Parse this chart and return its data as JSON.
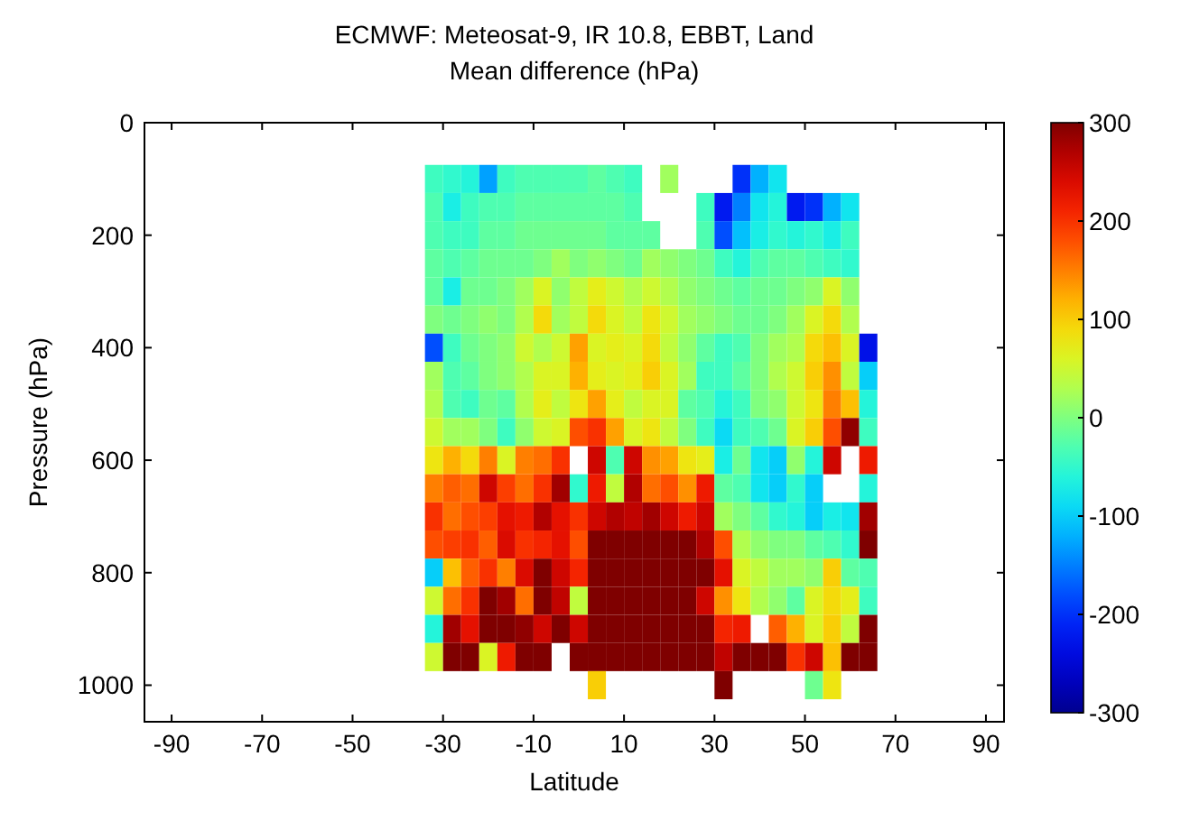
{
  "chart_data": {
    "type": "heatmap",
    "title": "ECMWF: Meteosat-9, IR 10.8, EBBT, Land",
    "subtitle": "Mean difference (hPa)",
    "xlabel": "Latitude",
    "ylabel": "Pressure (hPa)",
    "x": [
      -32,
      -28,
      -24,
      -20,
      -16,
      -12,
      -8,
      -4,
      0,
      4,
      8,
      12,
      16,
      20,
      24,
      28,
      32,
      36,
      40,
      44,
      48,
      52,
      56,
      60,
      64
    ],
    "y": [
      100,
      150,
      200,
      250,
      300,
      350,
      400,
      450,
      500,
      550,
      600,
      650,
      700,
      750,
      800,
      850,
      900,
      950,
      1000
    ],
    "xlim": [
      -96,
      94
    ],
    "xticks": [
      -90,
      -70,
      -50,
      -30,
      -10,
      10,
      30,
      50,
      70,
      90
    ],
    "ylim": [
      1065,
      0
    ],
    "yticks": [
      0,
      200,
      400,
      600,
      800,
      1000
    ],
    "clim": [
      -300,
      300
    ],
    "cticks": [
      -300,
      -200,
      -100,
      0,
      100,
      200,
      300
    ],
    "cells": [
      [
        -40,
        -50,
        -60,
        -130,
        -40,
        -30,
        -30,
        -30,
        -30,
        -20,
        -30,
        -40,
        null,
        20,
        null,
        null,
        null,
        -200,
        -120,
        -80,
        null,
        null,
        null,
        null,
        null
      ],
      [
        -30,
        -70,
        -40,
        -30,
        -30,
        -20,
        -20,
        -20,
        -20,
        -20,
        -20,
        -30,
        null,
        null,
        null,
        -40,
        -220,
        -150,
        -80,
        -60,
        -220,
        -200,
        -120,
        -80,
        null
      ],
      [
        -30,
        -40,
        -40,
        -20,
        -20,
        -10,
        -10,
        -10,
        -10,
        -10,
        -20,
        -20,
        -20,
        null,
        null,
        -30,
        -180,
        -110,
        -70,
        -50,
        -60,
        -50,
        -70,
        -40,
        null
      ],
      [
        -20,
        -30,
        -20,
        -10,
        -10,
        -10,
        0,
        20,
        0,
        10,
        0,
        -10,
        20,
        10,
        0,
        -10,
        -40,
        -60,
        -30,
        -20,
        -20,
        -30,
        -40,
        -50,
        null
      ],
      [
        -20,
        -70,
        -10,
        -10,
        0,
        20,
        60,
        10,
        40,
        70,
        50,
        30,
        50,
        30,
        10,
        0,
        -10,
        -20,
        -10,
        -10,
        0,
        10,
        60,
        10,
        null
      ],
      [
        0,
        -10,
        0,
        10,
        0,
        30,
        90,
        20,
        40,
        90,
        60,
        40,
        80,
        50,
        20,
        10,
        0,
        -10,
        -10,
        0,
        20,
        60,
        90,
        30,
        null
      ],
      [
        -180,
        -40,
        -10,
        0,
        10,
        50,
        30,
        50,
        130,
        60,
        70,
        60,
        90,
        40,
        10,
        -20,
        -40,
        -30,
        0,
        20,
        30,
        90,
        110,
        60,
        -230
      ],
      [
        20,
        -30,
        -20,
        0,
        10,
        30,
        60,
        60,
        120,
        70,
        60,
        70,
        100,
        60,
        20,
        -40,
        -40,
        -20,
        0,
        30,
        50,
        100,
        140,
        40,
        -100
      ],
      [
        30,
        -30,
        -40,
        -10,
        -20,
        30,
        70,
        40,
        80,
        130,
        70,
        40,
        60,
        60,
        -20,
        -30,
        -60,
        -40,
        0,
        10,
        50,
        80,
        150,
        110,
        -60
      ],
      [
        50,
        20,
        20,
        0,
        -40,
        10,
        50,
        60,
        180,
        200,
        130,
        60,
        80,
        40,
        0,
        -40,
        -90,
        -40,
        -30,
        -10,
        60,
        100,
        180,
        290,
        -40
      ],
      [
        80,
        120,
        90,
        150,
        60,
        150,
        160,
        200,
        null,
        250,
        -30,
        250,
        140,
        130,
        80,
        70,
        -70,
        -10,
        -80,
        -100,
        10,
        -60,
        250,
        null,
        220
      ],
      [
        150,
        170,
        160,
        250,
        190,
        160,
        200,
        280,
        -50,
        220,
        40,
        270,
        160,
        180,
        140,
        220,
        -20,
        -30,
        -80,
        -100,
        -50,
        -100,
        null,
        null,
        -60
      ],
      [
        200,
        160,
        180,
        190,
        230,
        220,
        270,
        230,
        200,
        250,
        270,
        260,
        280,
        250,
        220,
        250,
        20,
        0,
        -20,
        -50,
        -60,
        -100,
        -70,
        -80,
        280
      ],
      [
        180,
        190,
        200,
        170,
        240,
        200,
        210,
        230,
        180,
        300,
        300,
        300,
        300,
        300,
        300,
        270,
        180,
        30,
        10,
        0,
        0,
        -20,
        -30,
        -50,
        300
      ],
      [
        -100,
        110,
        170,
        200,
        150,
        240,
        300,
        250,
        210,
        300,
        300,
        300,
        300,
        300,
        300,
        300,
        230,
        60,
        40,
        20,
        20,
        10,
        100,
        -20,
        -30
      ],
      [
        50,
        160,
        200,
        300,
        280,
        160,
        300,
        260,
        40,
        300,
        300,
        300,
        300,
        300,
        300,
        250,
        140,
        80,
        30,
        10,
        -20,
        60,
        90,
        70,
        -40
      ],
      [
        -60,
        280,
        230,
        300,
        300,
        290,
        250,
        300,
        250,
        300,
        300,
        300,
        300,
        300,
        300,
        300,
        210,
        220,
        null,
        170,
        120,
        60,
        100,
        40,
        300
      ],
      [
        50,
        300,
        300,
        60,
        220,
        300,
        300,
        null,
        300,
        300,
        300,
        300,
        300,
        300,
        300,
        300,
        260,
        300,
        300,
        300,
        200,
        250,
        110,
        300,
        300
      ],
      [
        null,
        null,
        null,
        null,
        null,
        null,
        null,
        null,
        null,
        100,
        null,
        null,
        null,
        null,
        null,
        null,
        300,
        null,
        null,
        null,
        null,
        -10,
        80,
        null,
        null
      ]
    ]
  }
}
